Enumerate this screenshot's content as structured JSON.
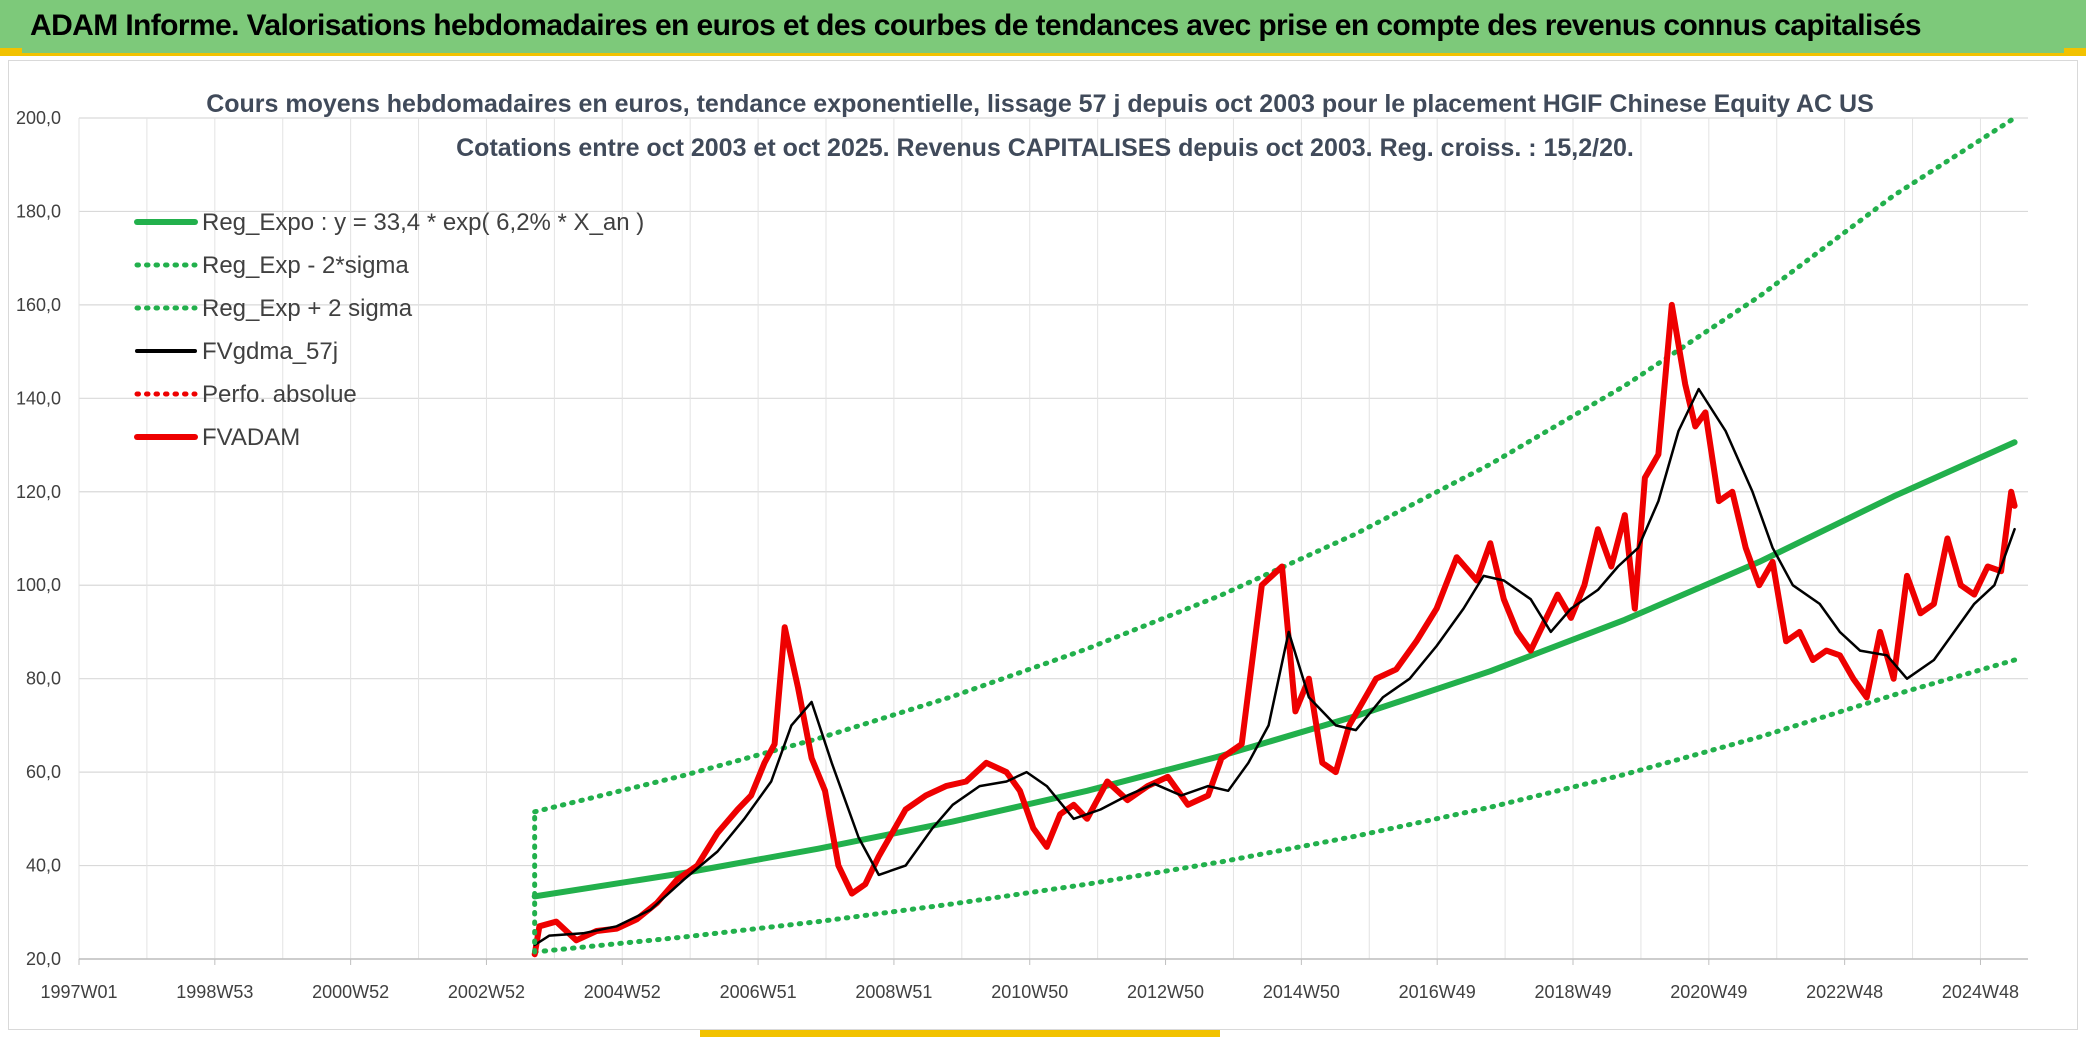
{
  "banner": {
    "title": "ADAM Informe. Valorisations hebdomadaires en euros et des courbes de tendances avec prise en compte des revenus connus capitalisés"
  },
  "colors": {
    "banner_bg": "#7dc97a",
    "accent": "#f2c200",
    "trend": "#22b04c",
    "smooth": "#000000",
    "price": "#ee0000"
  },
  "chart_data": {
    "type": "line",
    "title": "Cours moyens hebdomadaires en euros, tendance exponentielle, lissage 57 j depuis oct 2003 pour le placement HGIF Chinese Equity AC US",
    "subtitle": "Cotations entre oct 2003 et oct 2025. Revenus CAPITALISES depuis oct 2003. Reg. croiss. : 15,2/20.",
    "x_ticks": [
      "1997W01",
      "1998W53",
      "2000W52",
      "2002W52",
      "2004W52",
      "2006W51",
      "2008W51",
      "2010W50",
      "2012W50",
      "2014W50",
      "2016W49",
      "2018W49",
      "2020W49",
      "2022W48",
      "2024W48"
    ],
    "x_range": [
      1997.0,
      2026.0
    ],
    "ylim": [
      20,
      200
    ],
    "y_ticks": [
      "20,0",
      "40,0",
      "60,0",
      "80,0",
      "100,0",
      "120,0",
      "140,0",
      "160,0",
      "180,0",
      "200,0"
    ],
    "grid": true,
    "legend_position": "top-left",
    "legend": [
      {
        "label": "Reg_Expo : y = 33,4 * exp( 6,2% *  X_an )",
        "style": "solid-thick",
        "color": "#22b04c"
      },
      {
        "label": "Reg_Exp - 2*sigma",
        "style": "dotted",
        "color": "#22b04c"
      },
      {
        "label": "Reg_Exp + 2 sigma",
        "style": "dotted",
        "color": "#22b04c"
      },
      {
        "label": "FVgdma_57j",
        "style": "solid",
        "color": "#000000"
      },
      {
        "label": "Perfo. absolue",
        "style": "dotted",
        "color": "#ee0000"
      },
      {
        "label": "FVADAM",
        "style": "solid-thick",
        "color": "#ee0000"
      }
    ],
    "series": [
      {
        "name": "Reg_Expo : y = 33,4 * exp( 6,2% *  X_an )",
        "x": [
          2003.78,
          2006.0,
          2008.0,
          2010.0,
          2012.0,
          2014.0,
          2016.0,
          2018.0,
          2020.0,
          2022.0,
          2024.0,
          2025.8
        ],
        "values": [
          33.4,
          38.4,
          43.6,
          49.4,
          56.0,
          63.5,
          72.0,
          81.6,
          92.6,
          105.0,
          119.0,
          130.6
        ]
      },
      {
        "name": "Reg_Exp - 2*sigma",
        "x": [
          2003.78,
          2006.0,
          2008.0,
          2010.0,
          2012.0,
          2014.0,
          2016.0,
          2018.0,
          2020.0,
          2022.0,
          2024.0,
          2025.8
        ],
        "values": [
          21.5,
          24.7,
          28.0,
          31.8,
          36.0,
          40.8,
          46.3,
          52.5,
          59.5,
          67.5,
          76.5,
          84.0
        ]
      },
      {
        "name": "Reg_Exp + 2 sigma",
        "x": [
          2003.78,
          2006.0,
          2008.0,
          2010.0,
          2012.0,
          2014.0,
          2016.0,
          2018.0,
          2020.0,
          2022.0,
          2024.0,
          2025.8
        ],
        "values": [
          51.5,
          59.3,
          67.2,
          76.2,
          86.4,
          97.9,
          111.0,
          125.9,
          142.7,
          161.8,
          183.4,
          200.0
        ]
      },
      {
        "name": "FVgdma_57j",
        "x": [
          2003.78,
          2004.0,
          2004.5,
          2005.0,
          2005.5,
          2006.0,
          2006.5,
          2006.9,
          2007.3,
          2007.6,
          2007.9,
          2008.2,
          2008.6,
          2008.9,
          2009.3,
          2009.7,
          2010.0,
          2010.4,
          2010.8,
          2011.1,
          2011.4,
          2011.8,
          2012.2,
          2012.6,
          2013.0,
          2013.4,
          2013.8,
          2014.1,
          2014.4,
          2014.7,
          2015.0,
          2015.3,
          2015.7,
          2016.0,
          2016.4,
          2016.8,
          2017.2,
          2017.6,
          2017.9,
          2018.2,
          2018.6,
          2018.9,
          2019.2,
          2019.6,
          2019.9,
          2020.2,
          2020.5,
          2020.8,
          2021.1,
          2021.5,
          2021.9,
          2022.2,
          2022.5,
          2022.9,
          2023.2,
          2023.5,
          2023.9,
          2024.2,
          2024.6,
          2024.9,
          2025.2,
          2025.5,
          2025.8
        ],
        "values": [
          23.0,
          25.0,
          25.5,
          27.0,
          30.5,
          37.0,
          43.0,
          50.0,
          58.0,
          70.0,
          75.0,
          62.0,
          46.0,
          38.0,
          40.0,
          48.0,
          53.0,
          57.0,
          58.0,
          60.0,
          57.0,
          50.0,
          52.0,
          55.0,
          57.5,
          55.0,
          57.0,
          56.0,
          62.0,
          70.0,
          90.0,
          76.0,
          70.0,
          69.0,
          76.0,
          80.0,
          87.0,
          95.0,
          102.0,
          101.0,
          97.0,
          90.0,
          95.0,
          99.0,
          104.0,
          108.0,
          118.0,
          133.0,
          142.0,
          133.0,
          120.0,
          108.0,
          100.0,
          96.0,
          90.0,
          86.0,
          85.0,
          80.0,
          84.0,
          90.0,
          96.0,
          100.0,
          112.0
        ]
      },
      {
        "name": "FVADAM",
        "x": [
          2003.78,
          2003.85,
          2004.1,
          2004.4,
          2004.7,
          2005.0,
          2005.3,
          2005.6,
          2005.9,
          2006.2,
          2006.5,
          2006.8,
          2007.0,
          2007.2,
          2007.35,
          2007.5,
          2007.7,
          2007.9,
          2008.1,
          2008.3,
          2008.5,
          2008.7,
          2008.9,
          2009.1,
          2009.3,
          2009.6,
          2009.9,
          2010.2,
          2010.5,
          2010.8,
          2011.0,
          2011.2,
          2011.4,
          2011.6,
          2011.8,
          2012.0,
          2012.3,
          2012.6,
          2012.9,
          2013.2,
          2013.5,
          2013.8,
          2014.0,
          2014.3,
          2014.6,
          2014.9,
          2015.1,
          2015.3,
          2015.5,
          2015.7,
          2015.9,
          2016.1,
          2016.3,
          2016.6,
          2016.9,
          2017.2,
          2017.5,
          2017.8,
          2018.0,
          2018.2,
          2018.4,
          2018.6,
          2018.8,
          2019.0,
          2019.2,
          2019.4,
          2019.6,
          2019.8,
          2020.0,
          2020.15,
          2020.3,
          2020.5,
          2020.7,
          2020.9,
          2021.05,
          2021.2,
          2021.4,
          2021.6,
          2021.8,
          2022.0,
          2022.2,
          2022.4,
          2022.6,
          2022.8,
          2023.0,
          2023.2,
          2023.4,
          2023.6,
          2023.8,
          2024.0,
          2024.2,
          2024.4,
          2024.6,
          2024.8,
          2025.0,
          2025.2,
          2025.4,
          2025.6,
          2025.75,
          2025.8
        ],
        "values": [
          21.0,
          27.0,
          28.0,
          24.0,
          26.0,
          26.5,
          28.5,
          32.0,
          37.0,
          40.0,
          47.0,
          52.0,
          55.0,
          62.0,
          66.0,
          91.0,
          78.0,
          63.0,
          56.0,
          40.0,
          34.0,
          36.0,
          42.0,
          47.0,
          52.0,
          55.0,
          57.0,
          58.0,
          62.0,
          60.0,
          56.0,
          48.0,
          44.0,
          51.0,
          53.0,
          50.0,
          58.0,
          54.0,
          57.0,
          59.0,
          53.0,
          55.0,
          63.0,
          66.0,
          100.0,
          104.0,
          73.0,
          80.0,
          62.0,
          60.0,
          70.0,
          75.0,
          80.0,
          82.0,
          88.0,
          95.0,
          106.0,
          101.0,
          109.0,
          97.0,
          90.0,
          86.0,
          92.0,
          98.0,
          93.0,
          100.0,
          112.0,
          104.0,
          115.0,
          95.0,
          123.0,
          128.0,
          160.0,
          143.0,
          134.0,
          137.0,
          118.0,
          120.0,
          108.0,
          100.0,
          105.0,
          88.0,
          90.0,
          84.0,
          86.0,
          85.0,
          80.0,
          76.0,
          90.0,
          80.0,
          102.0,
          94.0,
          96.0,
          110.0,
          100.0,
          98.0,
          104.0,
          103.0,
          120.0,
          117.0
        ]
      }
    ]
  }
}
